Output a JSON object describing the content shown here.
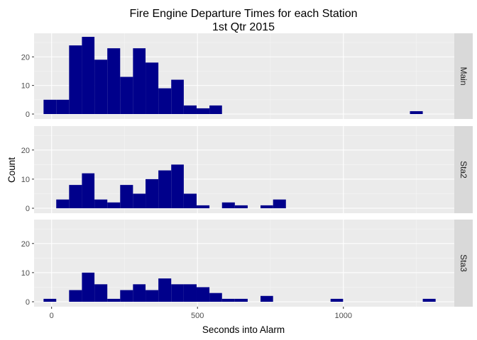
{
  "chart_data": {
    "type": "histogram",
    "title": "Fire Engine Departure Times for each Station",
    "subtitle": "1st Qtr 2015",
    "xlabel": "Seconds into Alarm",
    "ylabel": "Count",
    "xlim": [
      -60,
      1380
    ],
    "ylim": [
      0,
      27
    ],
    "x_ticks": [
      0,
      500,
      1000
    ],
    "y_ticks": [
      0,
      10,
      20
    ],
    "bin_width": 43.7,
    "bar_color": "#00008b",
    "panel_color": "#ebebeb",
    "strip_color": "#d9d9d9",
    "facets": [
      {
        "name": "Main",
        "bins": [
          {
            "x0": -27.5,
            "x1": 16,
            "count": 5
          },
          {
            "x0": 16,
            "x1": 60,
            "count": 5
          },
          {
            "x0": 60,
            "x1": 104,
            "count": 24
          },
          {
            "x0": 104,
            "x1": 147,
            "count": 27
          },
          {
            "x0": 147,
            "x1": 191,
            "count": 19
          },
          {
            "x0": 191,
            "x1": 235,
            "count": 23
          },
          {
            "x0": 235,
            "x1": 279,
            "count": 13
          },
          {
            "x0": 279,
            "x1": 322,
            "count": 23
          },
          {
            "x0": 322,
            "x1": 366,
            "count": 18
          },
          {
            "x0": 366,
            "x1": 410,
            "count": 9
          },
          {
            "x0": 410,
            "x1": 453,
            "count": 12
          },
          {
            "x0": 453,
            "x1": 497,
            "count": 3
          },
          {
            "x0": 497,
            "x1": 541,
            "count": 2
          },
          {
            "x0": 541,
            "x1": 584,
            "count": 3
          },
          {
            "x0": 1228,
            "x1": 1272,
            "count": 1
          }
        ]
      },
      {
        "name": "Sta2",
        "bins": [
          {
            "x0": 16,
            "x1": 60,
            "count": 3
          },
          {
            "x0": 60,
            "x1": 104,
            "count": 8
          },
          {
            "x0": 104,
            "x1": 147,
            "count": 12
          },
          {
            "x0": 147,
            "x1": 191,
            "count": 3
          },
          {
            "x0": 191,
            "x1": 235,
            "count": 2
          },
          {
            "x0": 235,
            "x1": 279,
            "count": 8
          },
          {
            "x0": 279,
            "x1": 322,
            "count": 5
          },
          {
            "x0": 322,
            "x1": 366,
            "count": 10
          },
          {
            "x0": 366,
            "x1": 410,
            "count": 13
          },
          {
            "x0": 410,
            "x1": 453,
            "count": 15
          },
          {
            "x0": 453,
            "x1": 497,
            "count": 5
          },
          {
            "x0": 497,
            "x1": 541,
            "count": 1
          },
          {
            "x0": 584,
            "x1": 628,
            "count": 2
          },
          {
            "x0": 628,
            "x1": 672,
            "count": 1
          },
          {
            "x0": 716,
            "x1": 759,
            "count": 1
          },
          {
            "x0": 759,
            "x1": 803,
            "count": 3
          }
        ]
      },
      {
        "name": "Sta3",
        "bins": [
          {
            "x0": -27.5,
            "x1": 16,
            "count": 1
          },
          {
            "x0": 60,
            "x1": 104,
            "count": 4
          },
          {
            "x0": 104,
            "x1": 147,
            "count": 10
          },
          {
            "x0": 147,
            "x1": 191,
            "count": 6
          },
          {
            "x0": 191,
            "x1": 235,
            "count": 1
          },
          {
            "x0": 235,
            "x1": 279,
            "count": 4
          },
          {
            "x0": 279,
            "x1": 322,
            "count": 6
          },
          {
            "x0": 322,
            "x1": 366,
            "count": 4
          },
          {
            "x0": 366,
            "x1": 410,
            "count": 8
          },
          {
            "x0": 410,
            "x1": 453,
            "count": 6
          },
          {
            "x0": 453,
            "x1": 497,
            "count": 6
          },
          {
            "x0": 497,
            "x1": 541,
            "count": 5
          },
          {
            "x0": 541,
            "x1": 584,
            "count": 3
          },
          {
            "x0": 584,
            "x1": 628,
            "count": 1
          },
          {
            "x0": 628,
            "x1": 672,
            "count": 1
          },
          {
            "x0": 716,
            "x1": 759,
            "count": 2
          },
          {
            "x0": 956,
            "x1": 999,
            "count": 1
          },
          {
            "x0": 1272,
            "x1": 1316,
            "count": 1
          }
        ]
      }
    ]
  }
}
